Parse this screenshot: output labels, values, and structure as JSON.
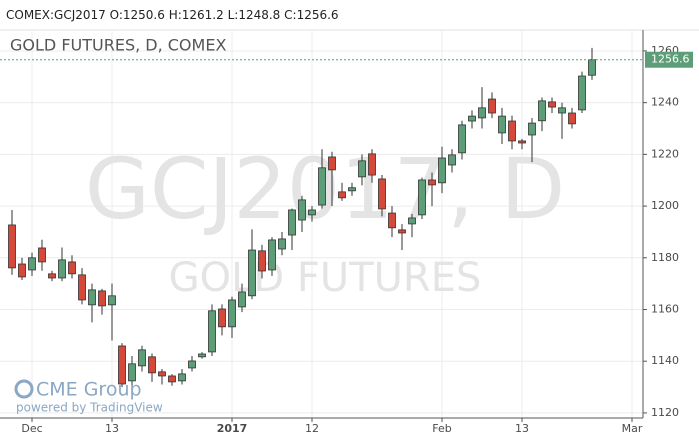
{
  "chart_data": {
    "type": "candlestick",
    "header": {
      "symbol": "COMEX:GCJ2017",
      "o": "O:1250.6",
      "h": "H:1261.2",
      "l": "L:1248.8",
      "c": "C:1256.6"
    },
    "title": "GOLD FUTURES, D, COMEX",
    "watermark": "GCJ2017, D",
    "watermark_subtitle": "GOLD FUTURES",
    "logo": "CME Group",
    "credit": "powered by TradingView",
    "up_color": "#5d9e78",
    "down_color": "#d4493a",
    "grid": true,
    "ylim": [
      1119.2,
      1268.1
    ],
    "yticks": [
      1120,
      1140,
      1160,
      1180,
      1200,
      1220,
      1240,
      1260
    ],
    "xticks": [
      {
        "value": 2,
        "label": "Dec"
      },
      {
        "value": 10,
        "label": "13"
      },
      {
        "value": 22,
        "label": "2017"
      },
      {
        "value": 30,
        "label": "12"
      },
      {
        "value": 43,
        "label": "Feb"
      },
      {
        "value": 51,
        "label": "13"
      },
      {
        "value": 62,
        "label": "Mar"
      }
    ],
    "open": [
      1192.7,
      1177.6,
      1175.3,
      1183.8,
      1173.8,
      1172.2,
      1178.4,
      1173.4,
      1161.8,
      1167.2,
      1161.8,
      1145.9,
      1132.4,
      1138.2,
      1141.7,
      1135.9,
      1134.3,
      1132.4,
      1137.4,
      1141.7,
      1143.6,
      1160.2,
      1153.3,
      1161,
      1165.3,
      1182.7,
      1175.3,
      1183.4,
      1188.8,
      1194.6,
      1196.6,
      1200.4,
      1219,
      1205.5,
      1205.9,
      1211.3,
      1220.2,
      1210.5,
      1197.3,
      1190.8,
      1193.1,
      1196.6,
      1210.1,
      1209,
      1215.9,
      1220.6,
      1232.9,
      1234.1,
      1241.4,
      1228.3,
      1232.9,
      1225.2,
      1227.5,
      1233,
      1240.3,
      1236,
      1236,
      1237.2,
      1250.6
    ],
    "high": [
      1198.5,
      1180,
      1182,
      1187,
      1175,
      1184,
      1181,
      1176,
      1170,
      1168,
      1170,
      1147,
      1142,
      1146,
      1143,
      1137,
      1135,
      1137,
      1142,
      1143.5,
      1162,
      1162,
      1165,
      1170,
      1191,
      1185,
      1188,
      1190,
      1199,
      1204,
      1200,
      1222,
      1221,
      1209,
      1209,
      1220,
      1222,
      1212,
      1200,
      1193,
      1197,
      1211,
      1213,
      1223,
      1222,
      1233,
      1237,
      1246,
      1244,
      1238,
      1235,
      1226,
      1234,
      1242,
      1242,
      1240,
      1238,
      1252,
      1261.2
    ],
    "low": [
      1173.4,
      1171.4,
      1173,
      1175,
      1171,
      1171,
      1172,
      1162,
      1155,
      1158,
      1148,
      1130,
      1129,
      1136,
      1132,
      1131,
      1130.5,
      1131,
      1136,
      1141,
      1142,
      1150,
      1149,
      1159,
      1164,
      1172,
      1173,
      1181,
      1183,
      1190,
      1194,
      1199,
      1200,
      1202,
      1204,
      1208,
      1209,
      1196,
      1188,
      1183,
      1188,
      1195,
      1200,
      1205,
      1213,
      1218,
      1230,
      1230,
      1234,
      1224,
      1222,
      1222,
      1217,
      1229,
      1236,
      1226,
      1230,
      1236,
      1248.8
    ],
    "close": [
      1176.1,
      1172.6,
      1180,
      1178.4,
      1172.2,
      1179.2,
      1173.8,
      1163.7,
      1167.6,
      1161.4,
      1165.3,
      1131.2,
      1139,
      1144.4,
      1135.5,
      1134.3,
      1132,
      1135.1,
      1140.1,
      1142.8,
      1159.5,
      1153.3,
      1163.7,
      1166.8,
      1183,
      1174.9,
      1186.9,
      1187.3,
      1198.5,
      1202.4,
      1198.5,
      1214.8,
      1214,
      1203.2,
      1207.1,
      1217.5,
      1212,
      1198.9,
      1191.6,
      1189.6,
      1195.4,
      1210.1,
      1208.2,
      1218.6,
      1219.8,
      1231.4,
      1234.8,
      1238,
      1236,
      1234.8,
      1225.2,
      1224.4,
      1232.1,
      1240.7,
      1238.3,
      1238,
      1231.8,
      1250.3,
      1256.6
    ]
  }
}
